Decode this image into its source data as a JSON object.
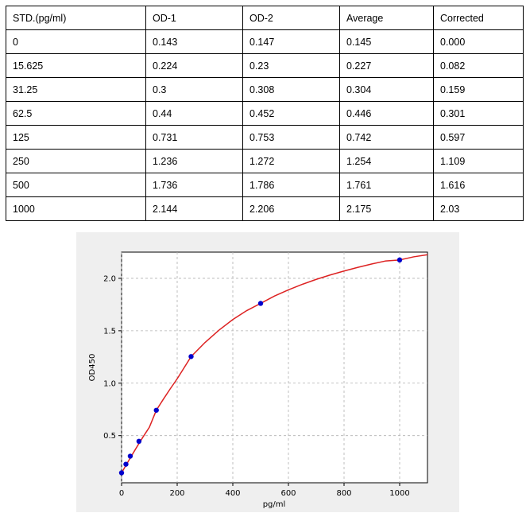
{
  "table": {
    "headers": [
      "STD.(pg/ml)",
      "OD-1",
      "OD-2",
      "Average",
      "Corrected"
    ],
    "rows": [
      [
        "0",
        "0.143",
        "0.147",
        "0.145",
        "0.000"
      ],
      [
        "15.625",
        "0.224",
        "0.23",
        "0.227",
        "0.082"
      ],
      [
        "31.25",
        "0.3",
        "0.308",
        "0.304",
        "0.159"
      ],
      [
        "62.5",
        "0.44",
        "0.452",
        "0.446",
        "0.301"
      ],
      [
        "125",
        "0.731",
        "0.753",
        "0.742",
        "0.597"
      ],
      [
        "250",
        "1.236",
        "1.272",
        "1.254",
        "1.109"
      ],
      [
        "500",
        "1.736",
        "1.786",
        "1.761",
        "1.616"
      ],
      [
        "1000",
        "2.144",
        "2.206",
        "2.175",
        "2.03"
      ]
    ]
  },
  "chart_data": {
    "type": "scatter",
    "title": "",
    "xlabel": "pg/ml",
    "ylabel": "OD450",
    "xlim": [
      0,
      1100
    ],
    "ylim": [
      0.05,
      2.25
    ],
    "xticks": [
      0,
      200,
      400,
      600,
      800,
      1000
    ],
    "xtick_labels": [
      "0",
      "200",
      "400",
      "600",
      "800",
      "1000"
    ],
    "yticks": [
      0.5,
      1.0,
      1.5,
      2.0
    ],
    "ytick_labels": [
      "0.5",
      "1.0",
      "1.5",
      "2.0"
    ],
    "grid": true,
    "series": [
      {
        "kind": "points",
        "color": "#0000cc",
        "x": [
          0,
          15.625,
          31.25,
          62.5,
          125,
          250,
          500,
          1000
        ],
        "y": [
          0.145,
          0.227,
          0.304,
          0.446,
          0.742,
          1.254,
          1.761,
          2.175
        ]
      },
      {
        "kind": "fit-curve",
        "color": "#dd2222",
        "x": [
          0,
          25,
          50,
          75,
          100,
          125,
          150,
          175,
          200,
          250,
          300,
          350,
          400,
          450,
          500,
          550,
          600,
          650,
          700,
          750,
          800,
          850,
          900,
          950,
          1000,
          1050,
          1100
        ],
        "y": [
          0.145,
          0.259,
          0.37,
          0.478,
          0.58,
          0.742,
          0.846,
          0.946,
          1.042,
          1.254,
          1.388,
          1.505,
          1.607,
          1.692,
          1.761,
          1.831,
          1.89,
          1.943,
          1.99,
          2.032,
          2.07,
          2.105,
          2.137,
          2.166,
          2.175,
          2.205,
          2.225
        ]
      }
    ]
  }
}
